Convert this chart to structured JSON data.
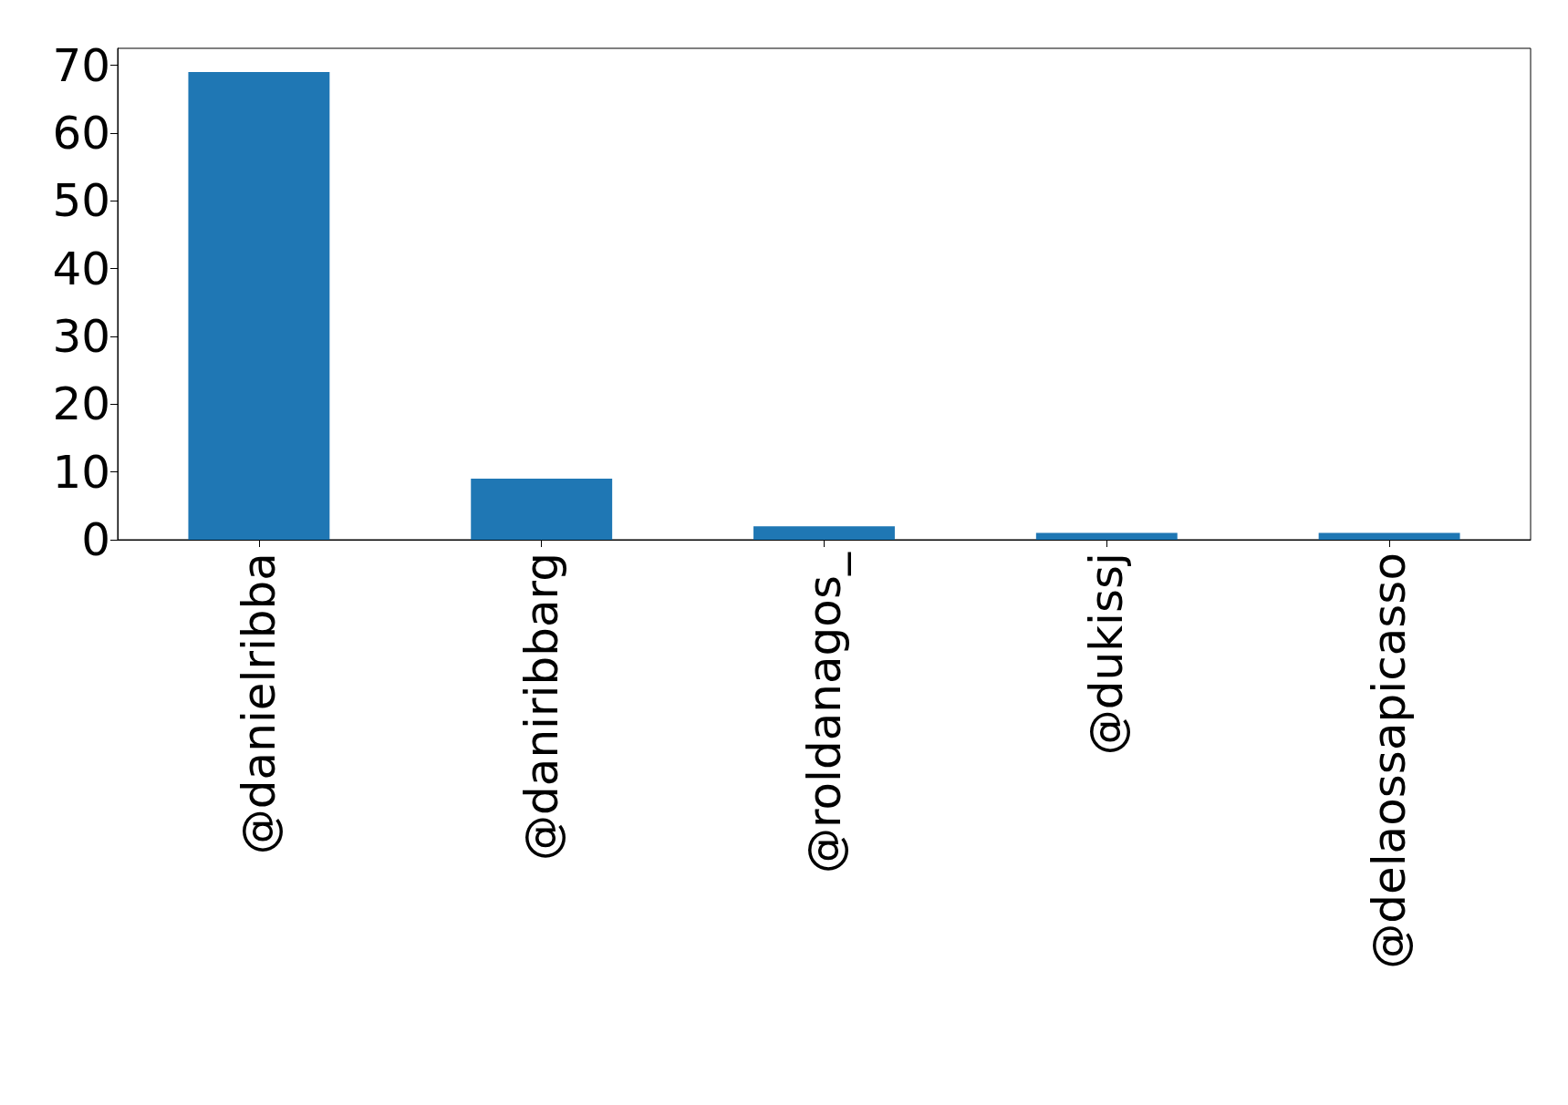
{
  "chart_data": {
    "type": "bar",
    "categories": [
      "@danielribba",
      "@daniribbarg",
      "@roldanagos_",
      "@dukissj",
      "@delaossapicasso"
    ],
    "values": [
      69,
      9,
      2,
      1,
      1
    ],
    "color": "#1f77b4",
    "ylim": [
      0,
      72.5
    ],
    "yticks": [
      0,
      10,
      20,
      30,
      40,
      50,
      60,
      70
    ]
  }
}
